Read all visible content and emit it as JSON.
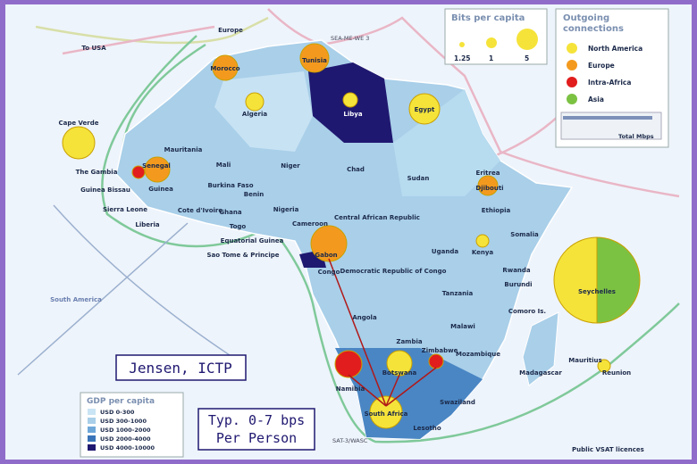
{
  "legend_bits": {
    "title": "Bits per capita",
    "labels": [
      "1.25",
      "1",
      "5"
    ]
  },
  "legend_connections": {
    "title_line1": "Outgoing",
    "title_line2": "connections",
    "items": [
      "North America",
      "Europe",
      "Intra-Africa",
      "Asia"
    ],
    "total_label": "Total Mbps"
  },
  "legend_gdp": {
    "title": "GDP per capita",
    "items": [
      "USD 0-300",
      "USD 300-1000",
      "USD 1000-2000",
      "USD 2000-4000",
      "USD 4000-10000"
    ]
  },
  "legend_vsat": "Public VSAT licences",
  "annotations": {
    "credit": "Jensen, ICTP",
    "note_line1": "Typ. 0-7 bps",
    "note_line2": "Per Person"
  },
  "cables": [
    "SEA-ME-WE 3",
    "SAT-3/WASC",
    "South America"
  ],
  "places": [
    "Europe",
    "To USA",
    "Morocco",
    "Tunisia",
    "Libya",
    "Egypt",
    "Algeria",
    "Cape Verde",
    "Mauritania",
    "Mali",
    "Niger",
    "Chad",
    "Sudan",
    "Eritrea",
    "Djibouti",
    "Ethiopia",
    "Somalia",
    "The Gambia",
    "Senegal",
    "Guinea Bissau",
    "Guinea",
    "Sierra Leone",
    "Burkina Faso",
    "Cote d'Ivoire",
    "Ghana",
    "Benin",
    "Togo",
    "Nigeria",
    "Liberia",
    "Cameroon",
    "Central African Republic",
    "Equatorial Guinea",
    "Sao Tome & Principe",
    "Gabon",
    "Congo",
    "Democratic Republic of Congo",
    "Uganda",
    "Kenya",
    "Rwanda",
    "Burundi",
    "Tanzania",
    "Seychelles",
    "Comoro Is.",
    "Angola",
    "Malawi",
    "Zambia",
    "Mozambique",
    "Zimbabwe",
    "Madagascar",
    "Mauritius",
    "Reunion",
    "Botswana",
    "Namibia",
    "Swaziland",
    "South Africa",
    "Lesotho"
  ]
}
